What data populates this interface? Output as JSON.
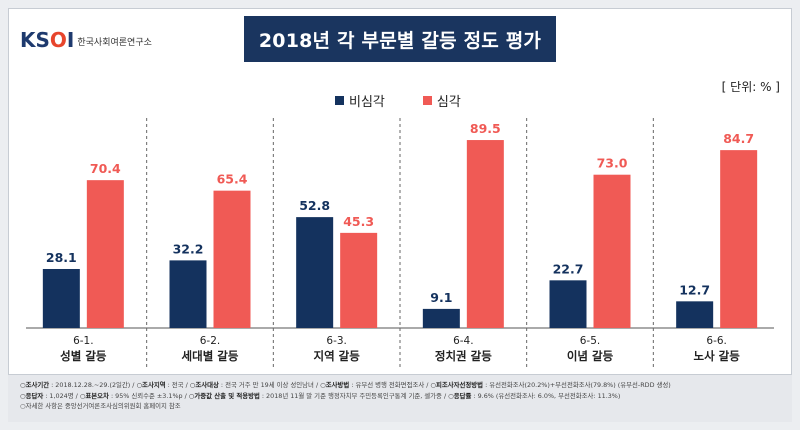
{
  "header": {
    "logo_mark": "KSOI",
    "logo_sub": "한국사회여론연구소",
    "title": "2018년 각 부문별 갈등 정도 평가",
    "unit": "[ 단위: % ]"
  },
  "colors": {
    "non_serious": "#14325e",
    "serious": "#f05a55",
    "title_bg": "#1a355f"
  },
  "chart_data": {
    "type": "bar",
    "title": "2018년 각 부문별 갈등 정도 평가",
    "unit": "[ 단위: % ]",
    "categories": [
      {
        "code": "6-1.",
        "label": "성별 갈등"
      },
      {
        "code": "6-2.",
        "label": "세대별 갈등"
      },
      {
        "code": "6-3.",
        "label": "지역 갈등"
      },
      {
        "code": "6-4.",
        "label": "정치권 갈등"
      },
      {
        "code": "6-5.",
        "label": "이념 갈등"
      },
      {
        "code": "6-6.",
        "label": "노사 갈등"
      }
    ],
    "series": [
      {
        "name": "비심각",
        "values": [
          28.1,
          32.2,
          52.8,
          9.1,
          22.7,
          12.7
        ]
      },
      {
        "name": "심각",
        "values": [
          70.4,
          65.4,
          45.3,
          89.5,
          73.0,
          84.7
        ]
      }
    ],
    "value_labels": [
      [
        "28.1",
        "32.2",
        "52.8",
        "9.1",
        "22.7",
        "12.7"
      ],
      [
        "70.4",
        "65.4",
        "45.3",
        "89.5",
        "73.0",
        "84.7"
      ]
    ],
    "ylim": [
      0,
      100
    ],
    "legend_position": "top-center",
    "grid": false
  },
  "footer": {
    "line1": [
      {
        "k": "○조사기간",
        "v": " : 2018.12.28.~29.(2일간) / "
      },
      {
        "k": "○조사지역",
        "v": " : 전국 / "
      },
      {
        "k": "○조사대상",
        "v": " : 전국 거주 만 19세 이상 성인남녀 / "
      },
      {
        "k": "○조사방법",
        "v": " : 유무선 병행 전화면접조사 / "
      },
      {
        "k": "○피조사자선정방법",
        "v": " : 유선전화조사(20.2%)+무선전화조사(79.8%) (유무선-RDD 생성)"
      }
    ],
    "line2": [
      {
        "k": "○응답자",
        "v": " : 1,024명 / "
      },
      {
        "k": "○표본오차",
        "v": " : 95% 신뢰수준 ±3.1%p / "
      },
      {
        "k": "○가중값 산출 및 적용방법",
        "v": " : 2018년 11월 말 기준 행정자치부 주민등록인구통계 기준, 셀가중 / "
      },
      {
        "k": "○응답률",
        "v": " : 9.6% (유선전화조사: 6.0%, 무선전화조사: 11.3%)"
      }
    ],
    "line3": "○자세한 사항은 중앙선거여론조사심의위원회 홈페이지 참조"
  }
}
